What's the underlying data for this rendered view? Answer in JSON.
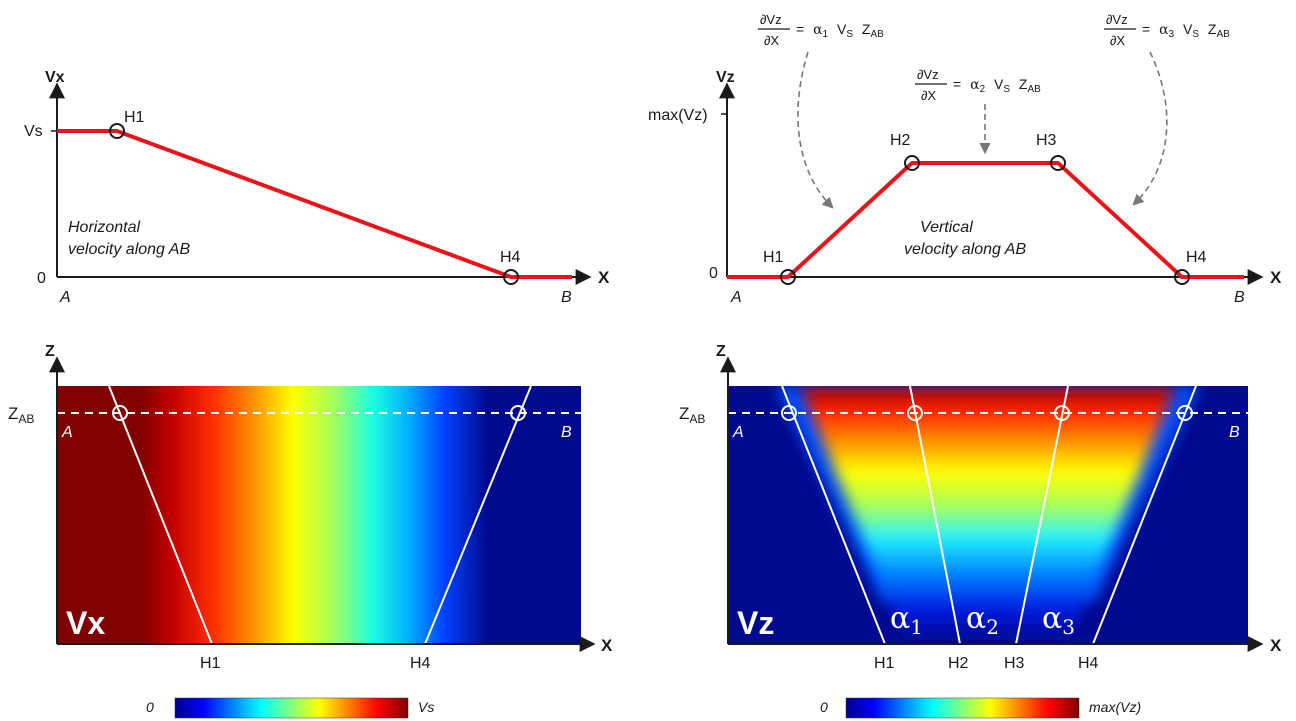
{
  "colors": {
    "curve": "#e8141a",
    "axis": "#1a1a1a",
    "field_high": "#800000",
    "field_low": "#000a8f",
    "boundary": "#ffffff",
    "dashed_line": "#ffffff"
  },
  "colormap_stops": [
    "#00008f",
    "#0000ff",
    "#00ffff",
    "#ffff00",
    "#ff0000",
    "#800000"
  ],
  "vx_plot": {
    "y_axis_label": "Vx",
    "x_axis_label": "X",
    "y_tick_high": "Vs",
    "y_tick_zero": "0",
    "start_label": "A",
    "end_label": "B",
    "annotation_line1": "Horizontal",
    "annotation_line2": "velocity along AB",
    "points": [
      {
        "label": "H1"
      },
      {
        "label": "H4"
      }
    ]
  },
  "vz_plot": {
    "y_axis_label": "Vz",
    "x_axis_label": "X",
    "y_tick_high": "max(Vz)",
    "y_tick_zero": "0",
    "start_label": "A",
    "end_label": "B",
    "annotation_line1": "Vertical",
    "annotation_line2": "velocity along AB",
    "points": [
      {
        "label": "H1"
      },
      {
        "label": "H2"
      },
      {
        "label": "H3"
      },
      {
        "label": "H4"
      }
    ],
    "formulas": [
      {
        "numerator": "∂Vz",
        "denominator": "∂X",
        "rhs_alpha": "α",
        "rhs_sub": "1",
        "rhs_rest": "V",
        "rhs_rest_sub": "S",
        "rhs_z": "Z",
        "rhs_z_sub": "AB"
      },
      {
        "numerator": "∂Vz",
        "denominator": "∂X",
        "rhs_alpha": "α",
        "rhs_sub": "2",
        "rhs_rest": "V",
        "rhs_rest_sub": "S",
        "rhs_z": "Z",
        "rhs_z_sub": "AB"
      },
      {
        "numerator": "∂Vz",
        "denominator": "∂X",
        "rhs_alpha": "α",
        "rhs_sub": "3",
        "rhs_rest": "V",
        "rhs_rest_sub": "S",
        "rhs_z": "Z",
        "rhs_z_sub": "AB"
      }
    ]
  },
  "vx_field": {
    "title": "Vx",
    "z_axis_label": "Z",
    "x_axis_label": "X",
    "zab_label": "Z",
    "zab_sub": "AB",
    "a_label": "A",
    "b_label": "B",
    "bottom_labels": [
      "H1",
      "H4"
    ],
    "colorbar_min": "0",
    "colorbar_max": "Vs"
  },
  "vz_field": {
    "title": "Vz",
    "z_axis_label": "Z",
    "x_axis_label": "X",
    "zab_label": "Z",
    "zab_sub": "AB",
    "a_label": "A",
    "b_label": "B",
    "bottom_labels": [
      "H1",
      "H2",
      "H3",
      "H4"
    ],
    "zone_labels": [
      {
        "alpha": "α",
        "sub": "1"
      },
      {
        "alpha": "α",
        "sub": "2"
      },
      {
        "alpha": "α",
        "sub": "3"
      }
    ],
    "colorbar_min": "0",
    "colorbar_max": "max(Vz)"
  }
}
